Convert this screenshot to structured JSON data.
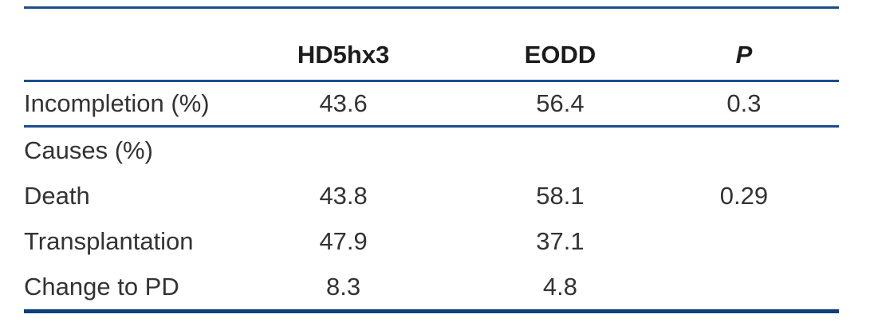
{
  "figure": {
    "type": "table"
  },
  "table": {
    "columns": [
      "",
      "HD5hx3",
      "EODD",
      "P"
    ],
    "rows": [
      {
        "label": "Incompletion (%)",
        "hd5hx3": "43.6",
        "eodd": "56.4",
        "p": "0.3"
      },
      {
        "label": "Causes (%)",
        "hd5hx3": "",
        "eodd": "",
        "p": ""
      },
      {
        "label": "Death",
        "hd5hx3": "43.8",
        "eodd": "58.1",
        "p": "0.29"
      },
      {
        "label": "Transplantation",
        "hd5hx3": "47.9",
        "eodd": "37.1",
        "p": ""
      },
      {
        "label": "Change to PD",
        "hd5hx3": "8.3",
        "eodd": "4.8",
        "p": ""
      }
    ]
  },
  "colors": {
    "rule_thin": "#1a4e8f",
    "rule_thick": "#0f3e7c",
    "header_text": "#1c1c1c",
    "body_text": "#333333"
  }
}
